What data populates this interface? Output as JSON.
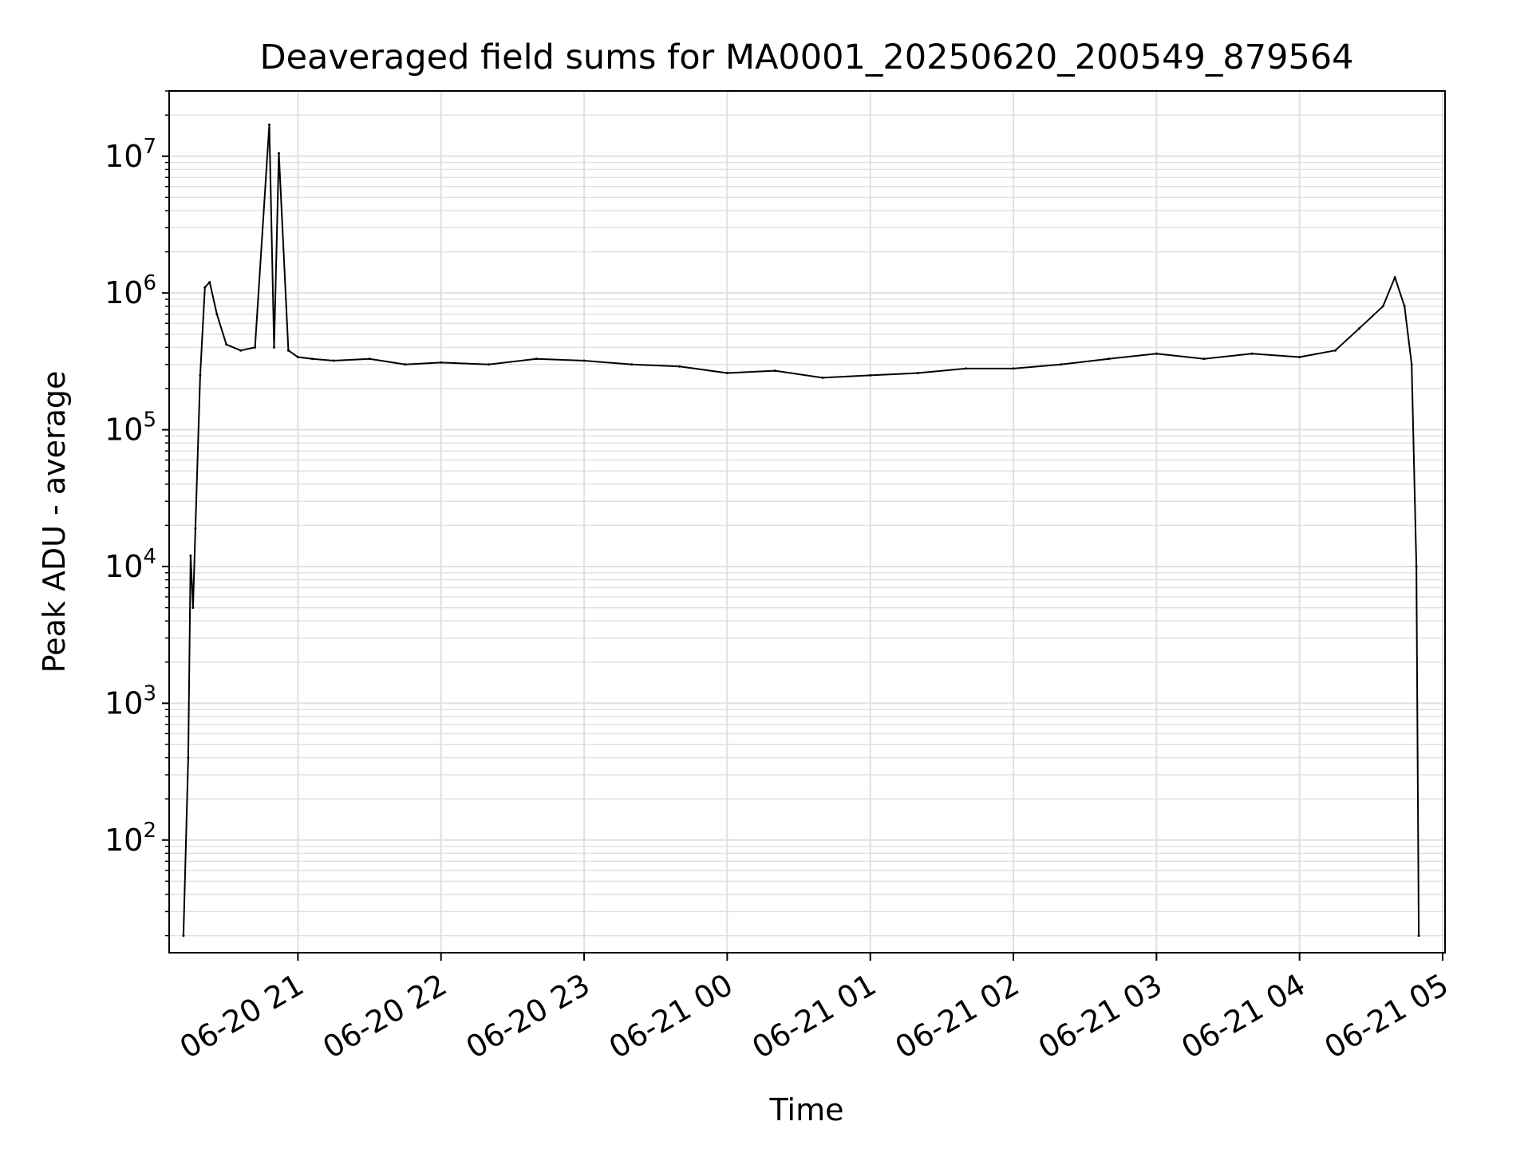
{
  "chart_data": {
    "type": "line",
    "title": "Deaveraged field sums for MA0001_20250620_200549_879564",
    "xlabel": "Time",
    "ylabel": "Peak ADU - average",
    "yscale": "log",
    "ylim": [
      15,
      30000000
    ],
    "xlim": [
      "2025-06-20 20:06",
      "2025-06-21 05:01"
    ],
    "x_ticks": [
      "06-20 21",
      "06-20 22",
      "06-20 23",
      "06-21 00",
      "06-21 01",
      "06-21 02",
      "06-21 03",
      "06-21 04",
      "06-21 05"
    ],
    "x_tick_times": [
      "2025-06-20 21:00",
      "2025-06-20 22:00",
      "2025-06-20 23:00",
      "2025-06-21 00:00",
      "2025-06-21 01:00",
      "2025-06-21 02:00",
      "2025-06-21 03:00",
      "2025-06-21 04:00",
      "2025-06-21 05:00"
    ],
    "y_ticks": [
      {
        "base": "10",
        "exp": "2",
        "value": 100
      },
      {
        "base": "10",
        "exp": "3",
        "value": 1000
      },
      {
        "base": "10",
        "exp": "4",
        "value": 10000
      },
      {
        "base": "10",
        "exp": "5",
        "value": 100000
      },
      {
        "base": "10",
        "exp": "6",
        "value": 1000000
      },
      {
        "base": "10",
        "exp": "7",
        "value": 10000000
      }
    ],
    "grid": true,
    "line_color": "#000000",
    "grid_color": "#e0e0e0",
    "series": [
      {
        "x": [
          "2025-06-20 20:12",
          "2025-06-20 20:14",
          "2025-06-20 20:15",
          "2025-06-20 20:16",
          "2025-06-20 20:17",
          "2025-06-20 20:19",
          "2025-06-20 20:21",
          "2025-06-20 20:23",
          "2025-06-20 20:26",
          "2025-06-20 20:30",
          "2025-06-20 20:36",
          "2025-06-20 20:42",
          "2025-06-20 20:48",
          "2025-06-20 20:50",
          "2025-06-20 20:52",
          "2025-06-20 20:56",
          "2025-06-20 21:00",
          "2025-06-20 21:06",
          "2025-06-20 21:15",
          "2025-06-20 21:30",
          "2025-06-20 21:45",
          "2025-06-20 22:00",
          "2025-06-20 22:20",
          "2025-06-20 22:40",
          "2025-06-20 23:00",
          "2025-06-20 23:20",
          "2025-06-20 23:40",
          "2025-06-21 00:00",
          "2025-06-21 00:20",
          "2025-06-21 00:40",
          "2025-06-21 01:00",
          "2025-06-21 01:20",
          "2025-06-21 01:40",
          "2025-06-21 02:00",
          "2025-06-21 02:20",
          "2025-06-21 02:40",
          "2025-06-21 03:00",
          "2025-06-21 03:20",
          "2025-06-21 03:40",
          "2025-06-21 04:00",
          "2025-06-21 04:15",
          "2025-06-21 04:25",
          "2025-06-21 04:35",
          "2025-06-21 04:40",
          "2025-06-21 04:44",
          "2025-06-21 04:47",
          "2025-06-21 04:49",
          "2025-06-21 04:50"
        ],
        "y": [
          20,
          400,
          12000,
          5000,
          19000,
          250000,
          1100000,
          1200000,
          700000,
          420000,
          380000,
          400000,
          17000000,
          400000,
          10500000,
          380000,
          340000,
          330000,
          320000,
          330000,
          300000,
          310000,
          300000,
          330000,
          320000,
          300000,
          290000,
          260000,
          270000,
          240000,
          250000,
          260000,
          280000,
          280000,
          300000,
          330000,
          360000,
          330000,
          360000,
          340000,
          380000,
          550000,
          800000,
          1300000,
          800000,
          300000,
          10000,
          20
        ]
      }
    ]
  }
}
